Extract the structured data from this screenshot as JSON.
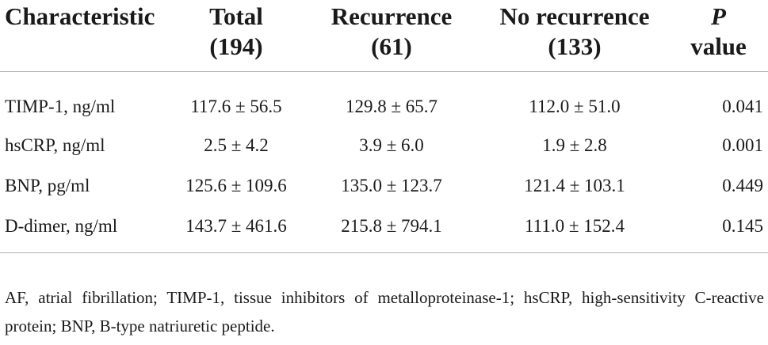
{
  "table": {
    "headers": [
      {
        "line1": "Characteristic",
        "line2": ""
      },
      {
        "line1": "Total",
        "line2": "(194)"
      },
      {
        "line1": "Recurrence",
        "line2": "(61)"
      },
      {
        "line1": "No recurrence",
        "line2": "(133)"
      },
      {
        "line1": "P",
        "line2": "value"
      }
    ],
    "rows": [
      [
        "TIMP-1, ng/ml",
        "117.6 ± 56.5",
        "129.8 ± 65.7",
        "112.0 ± 51.0",
        "0.041"
      ],
      [
        "hsCRP, ng/ml",
        "2.5 ± 4.2",
        "3.9 ± 6.0",
        "1.9 ± 2.8",
        "0.001"
      ],
      [
        "BNP, pg/ml",
        "125.6 ± 109.6",
        "135.0 ± 123.7",
        "121.4 ± 103.1",
        "0.449"
      ],
      [
        "D-dimer, ng/ml",
        "143.7 ± 461.6",
        "215.8 ± 794.1",
        "111.0 ± 152.4",
        "0.145"
      ]
    ]
  },
  "footnote": "AF, atrial fibrillation; TIMP-1, tissue inhibitors of metalloproteinase-1; hsCRP, high-sensitivity C-reactive protein; BNP, B-type natriuretic peptide."
}
